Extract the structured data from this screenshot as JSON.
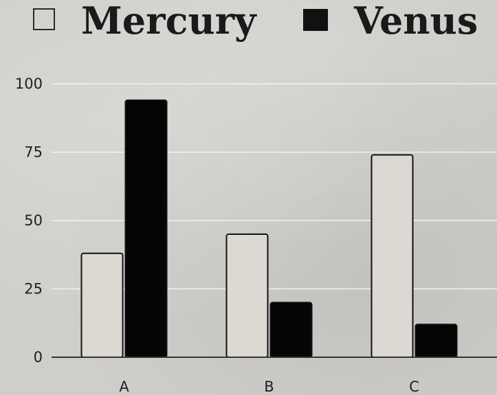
{
  "chart_data": {
    "type": "bar",
    "title": "",
    "xlabel": "",
    "ylabel": "",
    "categories": [
      "A",
      "B",
      "C"
    ],
    "series": [
      {
        "name": "Mercury",
        "values": [
          38,
          45,
          74
        ],
        "color": "#dcd9d3"
      },
      {
        "name": "Venus",
        "values": [
          94,
          20,
          12
        ],
        "color": "#050505"
      }
    ],
    "ylim": [
      0,
      100
    ],
    "yticks": [
      "0",
      "25",
      "50",
      "75",
      "100"
    ],
    "ytick_values": [
      0,
      25,
      50,
      75,
      100
    ],
    "grid": true,
    "legend_position": "top"
  }
}
